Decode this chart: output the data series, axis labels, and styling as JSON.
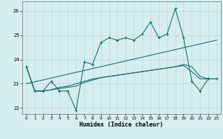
{
  "xlabel": "Humidex (Indice chaleur)",
  "bg_color": "#d6eef0",
  "grid_color": "#b8d8dc",
  "line_color": "#1a6b6b",
  "xlim": [
    -0.5,
    23.5
  ],
  "ylim": [
    21.75,
    26.4
  ],
  "yticks": [
    22,
    23,
    24,
    25,
    26
  ],
  "xticks": [
    0,
    1,
    2,
    3,
    4,
    5,
    6,
    7,
    8,
    9,
    10,
    11,
    12,
    13,
    14,
    15,
    16,
    17,
    18,
    19,
    20,
    21,
    22,
    23
  ],
  "series1_x": [
    0,
    1,
    2,
    3,
    4,
    5,
    6,
    7,
    8,
    9,
    10,
    11,
    12,
    13,
    14,
    15,
    16,
    17,
    18,
    19,
    20,
    21,
    22,
    23
  ],
  "series1_y": [
    23.7,
    22.7,
    22.7,
    23.1,
    22.7,
    22.7,
    21.9,
    23.9,
    23.8,
    24.7,
    24.9,
    24.8,
    24.9,
    24.8,
    25.05,
    25.55,
    24.9,
    25.05,
    26.1,
    24.9,
    23.1,
    22.7,
    23.2,
    23.2
  ],
  "series2_x": [
    0,
    1,
    2,
    3,
    4,
    5,
    6,
    7,
    8,
    9,
    10,
    11,
    12,
    13,
    14,
    15,
    16,
    17,
    18,
    19,
    20,
    21,
    22,
    23
  ],
  "series2_y": [
    23.7,
    22.7,
    22.7,
    22.75,
    22.8,
    22.85,
    22.9,
    23.05,
    23.15,
    23.25,
    23.3,
    23.35,
    23.4,
    23.45,
    23.5,
    23.55,
    23.6,
    23.65,
    23.7,
    23.75,
    23.5,
    23.2,
    23.2,
    23.2
  ],
  "series3_x": [
    0,
    1,
    2,
    3,
    4,
    5,
    6,
    7,
    8,
    9,
    10,
    11,
    12,
    13,
    14,
    15,
    16,
    17,
    18,
    19,
    20,
    21,
    22,
    23
  ],
  "series3_y": [
    23.7,
    22.7,
    22.7,
    22.75,
    22.85,
    22.9,
    23.0,
    23.1,
    23.2,
    23.25,
    23.3,
    23.35,
    23.4,
    23.45,
    23.5,
    23.55,
    23.6,
    23.65,
    23.7,
    23.8,
    23.7,
    23.3,
    23.2,
    23.2
  ],
  "series4_x": [
    0,
    23
  ],
  "series4_y": [
    23.0,
    24.8
  ]
}
